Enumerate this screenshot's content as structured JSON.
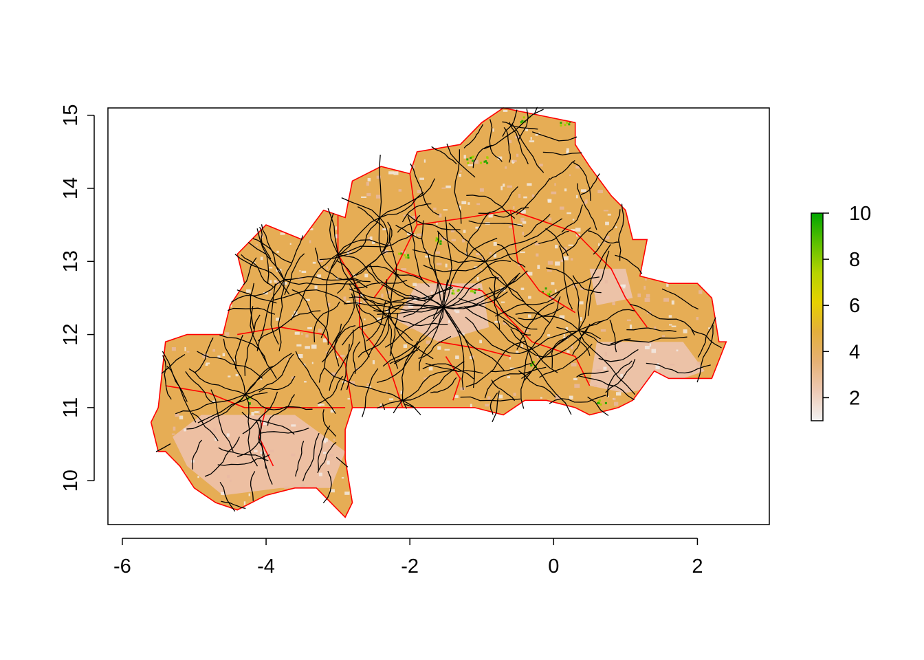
{
  "chart_data": {
    "type": "heatmap",
    "title": "",
    "xlabel": "",
    "ylabel": "",
    "xlim": [
      -6.2,
      3.0
    ],
    "ylim": [
      9.4,
      15.1
    ],
    "x_ticks": [
      -6,
      -4,
      -2,
      0,
      2
    ],
    "x_tick_labels": [
      "-6",
      "-4",
      "-2",
      "0",
      "2"
    ],
    "y_ticks": [
      10,
      11,
      12,
      13,
      14,
      15
    ],
    "y_tick_labels": [
      "10",
      "11",
      "12",
      "13",
      "14",
      "15"
    ],
    "grid": false,
    "legend": {
      "placement": "right",
      "type": "colorbar",
      "range": [
        1,
        10
      ],
      "ticks": [
        2,
        4,
        6,
        8,
        10
      ],
      "tick_labels": [
        "2",
        "4",
        "6",
        "8",
        "10"
      ],
      "colors": [
        "#f2f2f2",
        "#edc9b4",
        "#e6b174",
        "#e3af3c",
        "#e6d100",
        "#b5d300",
        "#5cbf00",
        "#00a600"
      ]
    },
    "layers": {
      "raster_fill_color": "#e6ad55",
      "admin_boundaries_color": "#ff0000",
      "roads_color": "#000000"
    },
    "country_outline": [
      [
        -5.5,
        11.0
      ],
      [
        -5.4,
        11.9
      ],
      [
        -5.1,
        12.0
      ],
      [
        -4.6,
        12.0
      ],
      [
        -4.5,
        12.4
      ],
      [
        -4.3,
        12.7
      ],
      [
        -4.4,
        13.1
      ],
      [
        -4.0,
        13.5
      ],
      [
        -3.5,
        13.3
      ],
      [
        -3.2,
        13.7
      ],
      [
        -2.9,
        13.6
      ],
      [
        -2.8,
        14.1
      ],
      [
        -2.4,
        14.3
      ],
      [
        -2.0,
        14.2
      ],
      [
        -1.9,
        14.5
      ],
      [
        -1.3,
        14.6
      ],
      [
        -1.0,
        14.9
      ],
      [
        -0.7,
        15.1
      ],
      [
        -0.2,
        15.0
      ],
      [
        0.3,
        14.9
      ],
      [
        0.3,
        14.6
      ],
      [
        0.5,
        14.3
      ],
      [
        0.8,
        13.9
      ],
      [
        1.0,
        13.7
      ],
      [
        1.1,
        13.3
      ],
      [
        1.3,
        13.3
      ],
      [
        1.2,
        12.8
      ],
      [
        1.6,
        12.7
      ],
      [
        2.0,
        12.7
      ],
      [
        2.2,
        12.5
      ],
      [
        2.3,
        11.9
      ],
      [
        2.4,
        11.9
      ],
      [
        2.2,
        11.4
      ],
      [
        1.6,
        11.4
      ],
      [
        1.4,
        11.5
      ],
      [
        1.1,
        11.1
      ],
      [
        0.9,
        11.0
      ],
      [
        0.5,
        10.9
      ],
      [
        0.3,
        11.0
      ],
      [
        -0.1,
        11.1
      ],
      [
        -0.4,
        11.1
      ],
      [
        -0.7,
        10.9
      ],
      [
        -1.1,
        11.0
      ],
      [
        -1.6,
        11.0
      ],
      [
        -2.0,
        11.0
      ],
      [
        -2.8,
        11.0
      ],
      [
        -2.9,
        10.7
      ],
      [
        -2.9,
        10.3
      ],
      [
        -2.8,
        9.7
      ],
      [
        -2.9,
        9.5
      ],
      [
        -3.3,
        9.9
      ],
      [
        -3.6,
        9.9
      ],
      [
        -4.0,
        9.8
      ],
      [
        -4.4,
        9.6
      ],
      [
        -4.7,
        9.7
      ],
      [
        -5.0,
        9.9
      ],
      [
        -5.2,
        10.2
      ],
      [
        -5.4,
        10.4
      ],
      [
        -5.5,
        10.4
      ],
      [
        -5.6,
        10.8
      ]
    ],
    "light_zones": [
      [
        [
          -4.9,
          10.9
        ],
        [
          -3.6,
          10.9
        ],
        [
          -2.9,
          10.4
        ],
        [
          -3.1,
          9.9
        ],
        [
          -3.8,
          9.9
        ],
        [
          -4.6,
          9.8
        ],
        [
          -5.1,
          10.2
        ],
        [
          -5.3,
          10.6
        ]
      ],
      [
        [
          0.6,
          11.9
        ],
        [
          1.8,
          11.9
        ],
        [
          2.1,
          11.5
        ],
        [
          1.5,
          11.3
        ],
        [
          1.0,
          11.2
        ],
        [
          0.5,
          11.3
        ]
      ],
      [
        [
          -1.9,
          12.7
        ],
        [
          -1.0,
          12.7
        ],
        [
          -0.9,
          12.1
        ],
        [
          -1.6,
          11.9
        ],
        [
          -2.2,
          12.2
        ]
      ],
      [
        [
          0.5,
          12.9
        ],
        [
          1.0,
          12.9
        ],
        [
          1.1,
          12.5
        ],
        [
          0.6,
          12.4
        ]
      ]
    ],
    "green_spots": [
      [
        -0.4,
        14.95
      ],
      [
        0.15,
        14.9
      ],
      [
        -1.15,
        14.4
      ],
      [
        -1.0,
        14.4
      ],
      [
        -2.1,
        13.1
      ],
      [
        -1.6,
        13.3
      ],
      [
        -1.1,
        12.6
      ],
      [
        -0.3,
        11.6
      ],
      [
        0.65,
        11.1
      ],
      [
        -1.4,
        12.6
      ],
      [
        -0.1,
        12.6
      ],
      [
        -4.3,
        11.1
      ]
    ],
    "hubs": [
      [
        -1.53,
        12.37
      ],
      [
        -2.42,
        13.6
      ],
      [
        -2.3,
        12.25
      ],
      [
        -4.29,
        11.18
      ],
      [
        -0.35,
        11.78
      ],
      [
        0.35,
        12.06
      ],
      [
        -3.75,
        12.75
      ],
      [
        -2.1,
        11.1
      ],
      [
        -0.95,
        13.0
      ],
      [
        -3.0,
        13.1
      ]
    ]
  }
}
